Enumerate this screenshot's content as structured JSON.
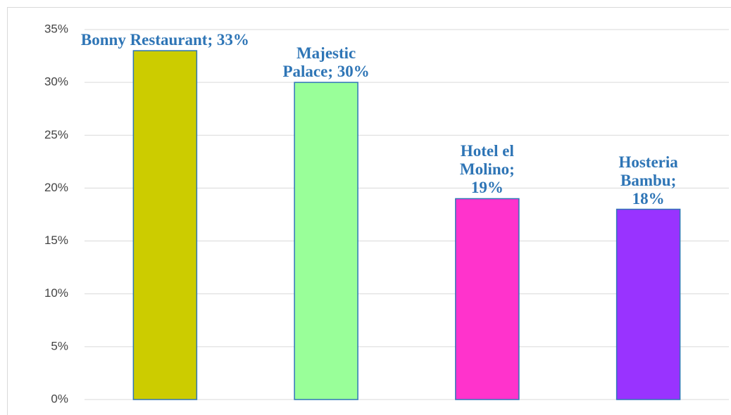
{
  "chart_data": {
    "type": "bar",
    "values": [
      33,
      30,
      19,
      18
    ],
    "value_labels": [
      "Bonny Restaurant; 33%",
      "Majestic Palace; 30%",
      "Hotel el Molino; 19%",
      "Hosteria Bambu; 18%"
    ],
    "colors": [
      "#cccc00",
      "#99ff99",
      "#ff33cc",
      "#9933ff"
    ],
    "edge_color": "#2e75b6",
    "ylim": [
      0,
      35
    ],
    "yticks": [
      {
        "value": 0,
        "label": "0%"
      },
      {
        "value": 5,
        "label": "5%"
      },
      {
        "value": 10,
        "label": "10%"
      },
      {
        "value": 15,
        "label": "15%"
      },
      {
        "value": 20,
        "label": "20%"
      },
      {
        "value": 25,
        "label": "25%"
      },
      {
        "value": 30,
        "label": "30%"
      },
      {
        "value": 35,
        "label": "35%"
      }
    ],
    "grid": true
  }
}
